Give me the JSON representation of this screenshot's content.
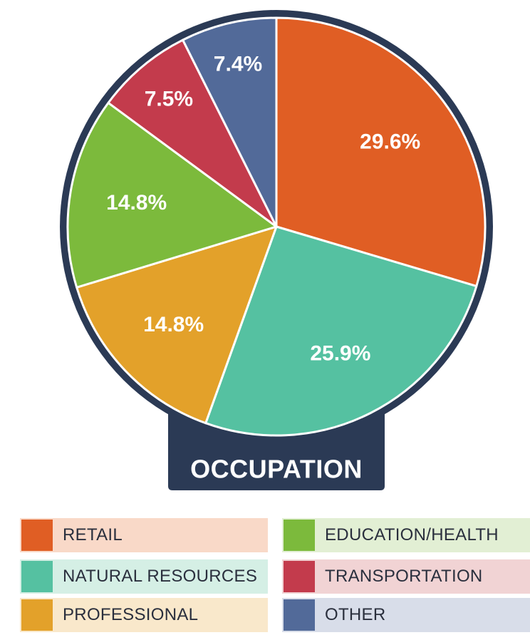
{
  "chart_data": {
    "type": "pie",
    "title": "OCCUPATION",
    "slices": [
      {
        "name": "RETAIL",
        "value": 29.6,
        "label": "29.6%",
        "color": "#e05e24",
        "legend_bg": "#f9d9c8"
      },
      {
        "name": "NATURAL RESOURCES",
        "value": 25.9,
        "label": "25.9%",
        "color": "#55c1a1",
        "legend_bg": "#d5efe5"
      },
      {
        "name": "PROFESSIONAL",
        "value": 14.8,
        "label": "14.8%",
        "color": "#e3a12a",
        "legend_bg": "#f9e8cb"
      },
      {
        "name": "EDUCATION/HEALTH",
        "value": 14.8,
        "label": "14.8%",
        "color": "#7cba3c",
        "legend_bg": "#e2efd4"
      },
      {
        "name": "TRANSPORTATION",
        "value": 7.5,
        "label": "7.5%",
        "color": "#c33b4c",
        "legend_bg": "#f1d3d4"
      },
      {
        "name": "OTHER",
        "value": 7.4,
        "label": "7.4%",
        "color": "#526a99",
        "legend_bg": "#d8dde9"
      }
    ],
    "legend_position": "bottom",
    "frame_color": "#2b3a55"
  }
}
